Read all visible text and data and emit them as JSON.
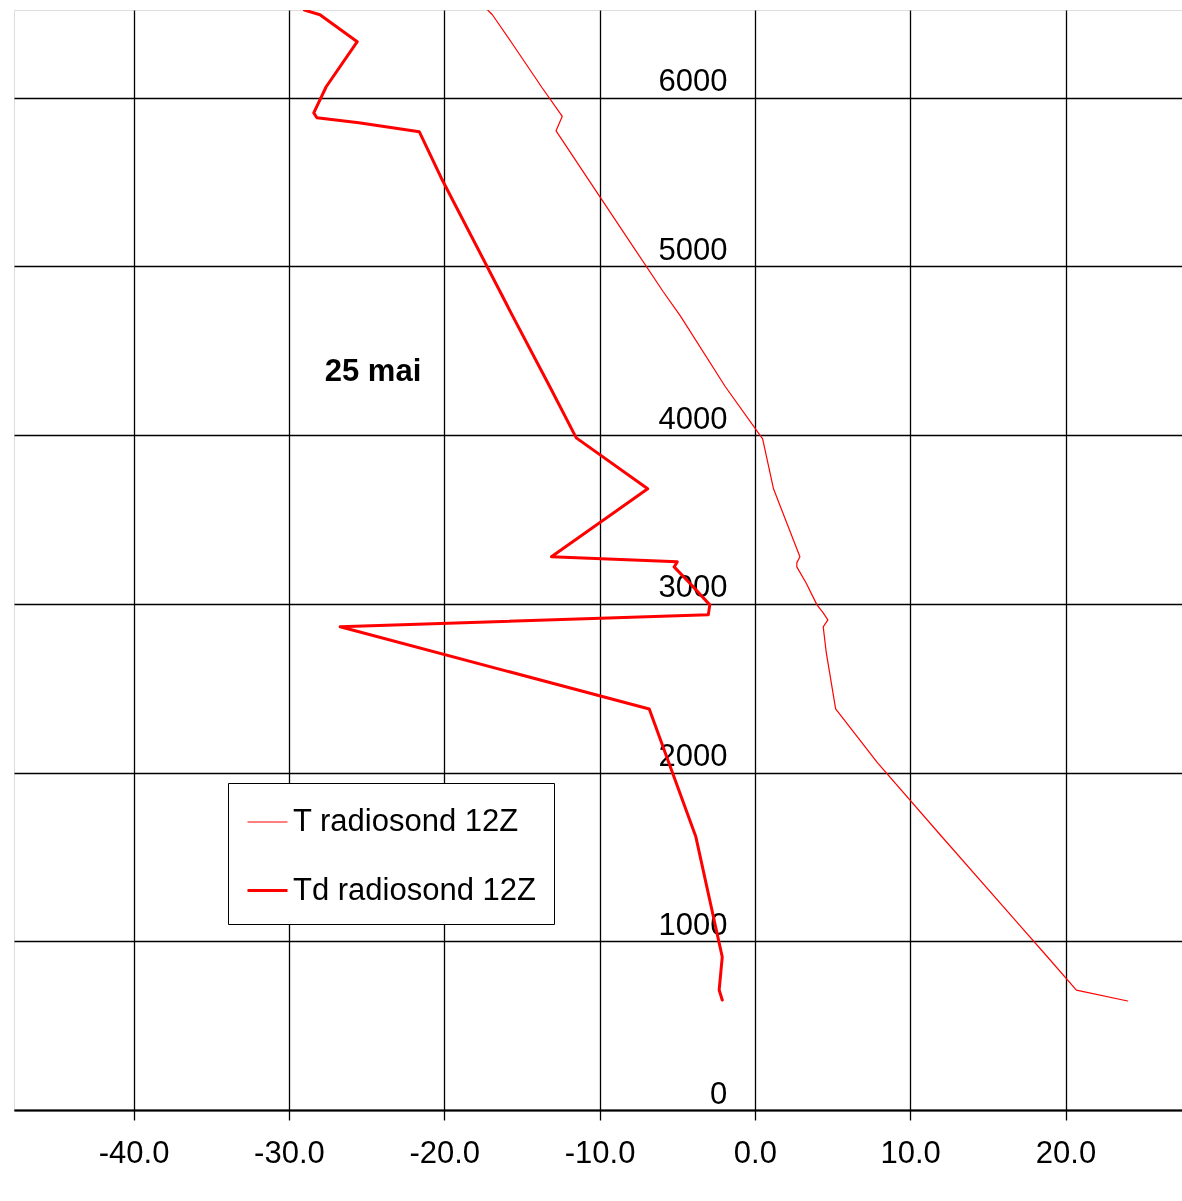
{
  "chart_data": {
    "type": "line",
    "annotations": [
      "25 mai"
    ],
    "xlim": [
      -47.7,
      27.5
    ],
    "ylim": [
      0,
      6520
    ],
    "xticks": [
      {
        "value": -40,
        "label": "-40.0"
      },
      {
        "value": -30,
        "label": "-30.0"
      },
      {
        "value": -20,
        "label": "-20.0"
      },
      {
        "value": -10,
        "label": "-10.0"
      },
      {
        "value": 0,
        "label": "0.0"
      },
      {
        "value": 10,
        "label": "10.0"
      },
      {
        "value": 20,
        "label": "20.0"
      }
    ],
    "yticks": [
      {
        "value": 0,
        "label": "0"
      },
      {
        "value": 1000,
        "label": "1000"
      },
      {
        "value": 2000,
        "label": "2000"
      },
      {
        "value": 3000,
        "label": "3000"
      },
      {
        "value": 4000,
        "label": "4000"
      },
      {
        "value": 5000,
        "label": "5000"
      },
      {
        "value": 6000,
        "label": "6000"
      }
    ],
    "grid": true,
    "legend": "bottom left",
    "series": [
      {
        "name": "T radiosond 12Z",
        "color": "#ff0000",
        "line_style": "solid",
        "x": [
          24.0,
          20.7,
          18.9,
          12.0,
          7.9,
          5.2,
          4.6,
          4.4,
          4.7,
          4.4,
          4.0,
          3.3,
          2.7,
          2.7,
          2.9,
          1.2,
          0.5,
          -1.9,
          -4.8,
          -5.9,
          -10.8,
          -12.8,
          -12.4,
          -13.7,
          -15.7,
          -16.9,
          -17.2
        ],
        "values": [
          646,
          711,
          901,
          1624,
          2057,
          2377,
          2709,
          2864,
          2905,
          2947,
          2994,
          3124,
          3219,
          3243,
          3279,
          3682,
          3978,
          4287,
          4707,
          4850,
          5526,
          5804,
          5890,
          6059,
          6332,
          6492,
          6520
        ]
      },
      {
        "name": "Td radiosond 12Z",
        "color": "#ff0000",
        "line_style": "solid",
        "x": [
          -2.1,
          -2.3,
          -2.1,
          -3.8,
          -6.8,
          -26.7,
          -3.0,
          -2.9,
          -4.2,
          -5.2,
          -5.0,
          -13.1,
          -6.9,
          -11.5,
          -13.2,
          -15.6,
          -16.4,
          -20.2,
          -21.6,
          -25.5,
          -28.2,
          -28.4,
          -27.6,
          -25.6,
          -28.0,
          -29.0
        ],
        "values": [
          652,
          711,
          907,
          1619,
          2377,
          2864,
          2935,
          2994,
          3124,
          3219,
          3249,
          3279,
          3682,
          3984,
          4287,
          4707,
          4850,
          5526,
          5798,
          5852,
          5881,
          5910,
          6065,
          6332,
          6492,
          6520
        ]
      }
    ]
  }
}
